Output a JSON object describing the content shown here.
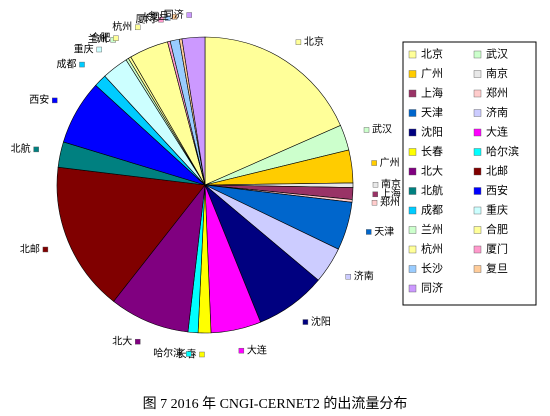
{
  "chart_data": {
    "type": "pie",
    "title": "图 7 2016 年 CNGI-CERNET2 的出流量分布",
    "categories": [
      "北京",
      "武汉",
      "广州",
      "南京",
      "上海",
      "郑州",
      "天津",
      "济南",
      "沈阳",
      "大连",
      "长春",
      "哈尔滨",
      "北大",
      "北邮",
      "北航",
      "西安",
      "成都",
      "重庆",
      "兰州",
      "合肥",
      "杭州",
      "厦门",
      "长沙",
      "复旦",
      "同济"
    ],
    "values": [
      18.5,
      2.8,
      3.6,
      0.5,
      1.3,
      0.3,
      5.3,
      4.0,
      7.8,
      5.5,
      1.4,
      1.1,
      8.8,
      16.4,
      2.8,
      7.1,
      1.4,
      2.9,
      0.3,
      0.3,
      4.3,
      0.3,
      1.0,
      0.3,
      2.5
    ],
    "colors": [
      "#ffff99",
      "#ccffcc",
      "#ffcc00",
      "#e8e8e8",
      "#993366",
      "#ffcccc",
      "#0066cc",
      "#ccccff",
      "#000080",
      "#ff00ff",
      "#ffff00",
      "#00ffff",
      "#800080",
      "#800000",
      "#008080",
      "#0000ff",
      "#00ccff",
      "#ccffff",
      "#ccffcc",
      "#ffff99",
      "#ffff99",
      "#ff99cc",
      "#99ccff",
      "#ffcc99",
      "#cc99ff"
    ],
    "legend": "right"
  }
}
